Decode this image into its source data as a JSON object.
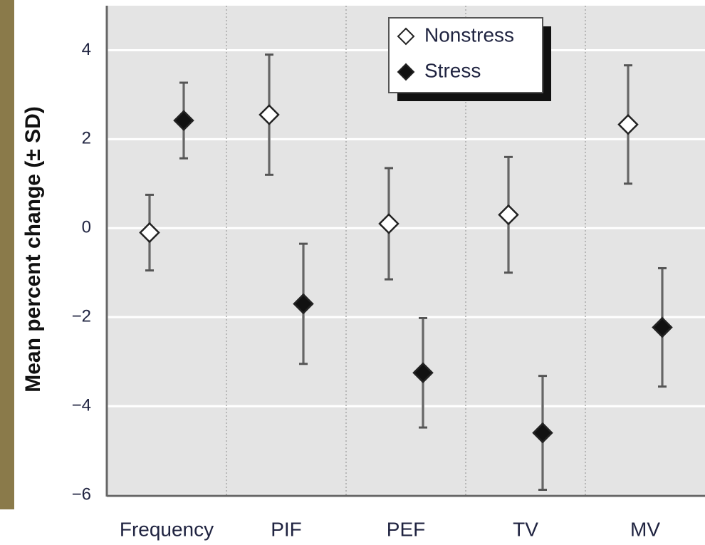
{
  "chart_data": {
    "type": "errorbar",
    "y_label": "Mean percent change (± SD)",
    "categories": [
      "Frequency",
      "PIF",
      "PEF",
      "TV",
      "MV"
    ],
    "series": [
      {
        "name": "Nonstress",
        "color": "#ffffff",
        "values": [
          -0.1,
          2.55,
          0.1,
          0.3,
          2.33
        ],
        "errors": [
          0.85,
          1.35,
          1.25,
          1.3,
          1.33
        ]
      },
      {
        "name": "Stress",
        "color": "#111111",
        "values": [
          2.42,
          -1.7,
          -3.25,
          -4.6,
          -2.23
        ],
        "errors": [
          0.85,
          1.35,
          1.23,
          1.28,
          1.33
        ]
      }
    ],
    "ylim": [
      -6,
      5
    ],
    "yticks": [
      {
        "value": -6,
        "label": "−6"
      },
      {
        "value": -4,
        "label": "−4"
      },
      {
        "value": -2,
        "label": "−2"
      },
      0,
      2,
      4
    ],
    "grid": true,
    "legend": "top"
  }
}
